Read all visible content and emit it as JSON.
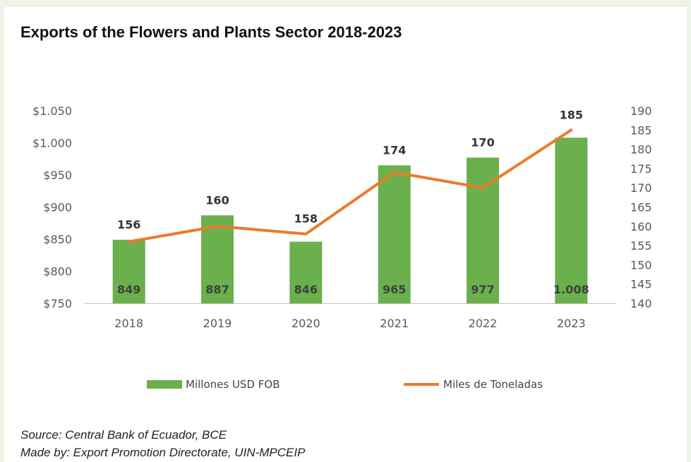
{
  "title": "Exports of the Flowers and Plants Sector 2018-2023",
  "colors": {
    "bar": "#6ab04c",
    "line": "#ec7a2c",
    "tick": "#595959",
    "label": "#333333"
  },
  "chart_data": {
    "type": "bar",
    "categories": [
      "2018",
      "2019",
      "2020",
      "2021",
      "2022",
      "2023"
    ],
    "series": [
      {
        "name": "Millones USD FOB",
        "kind": "bar",
        "axis": "left",
        "values": [
          849,
          887,
          846,
          965,
          977,
          1008
        ],
        "labels": [
          "849",
          "887",
          "846",
          "965",
          "977",
          "1.008"
        ]
      },
      {
        "name": "Miles de Toneladas",
        "kind": "line",
        "axis": "right",
        "values": [
          156,
          160,
          158,
          174,
          170,
          185
        ],
        "labels": [
          "156",
          "160",
          "158",
          "174",
          "170",
          "185"
        ]
      }
    ],
    "y_left": {
      "range": [
        750,
        1050
      ],
      "ticks": [
        "$750",
        "$800",
        "$850",
        "$900",
        "$950",
        "$1.000",
        "$1.050"
      ]
    },
    "y_right": {
      "range": [
        140,
        190
      ],
      "ticks": [
        "140",
        "145",
        "150",
        "155",
        "160",
        "165",
        "170",
        "175",
        "180",
        "185",
        "190"
      ]
    },
    "grid": false,
    "legend": "bottom"
  },
  "legend": {
    "bar_label": "Millones USD FOB",
    "line_label": "Miles de Toneladas"
  },
  "source": {
    "line1": "Source: Central Bank of Ecuador, BCE",
    "line2": "Made by: Export Promotion Directorate, UIN-MPCEIP"
  }
}
